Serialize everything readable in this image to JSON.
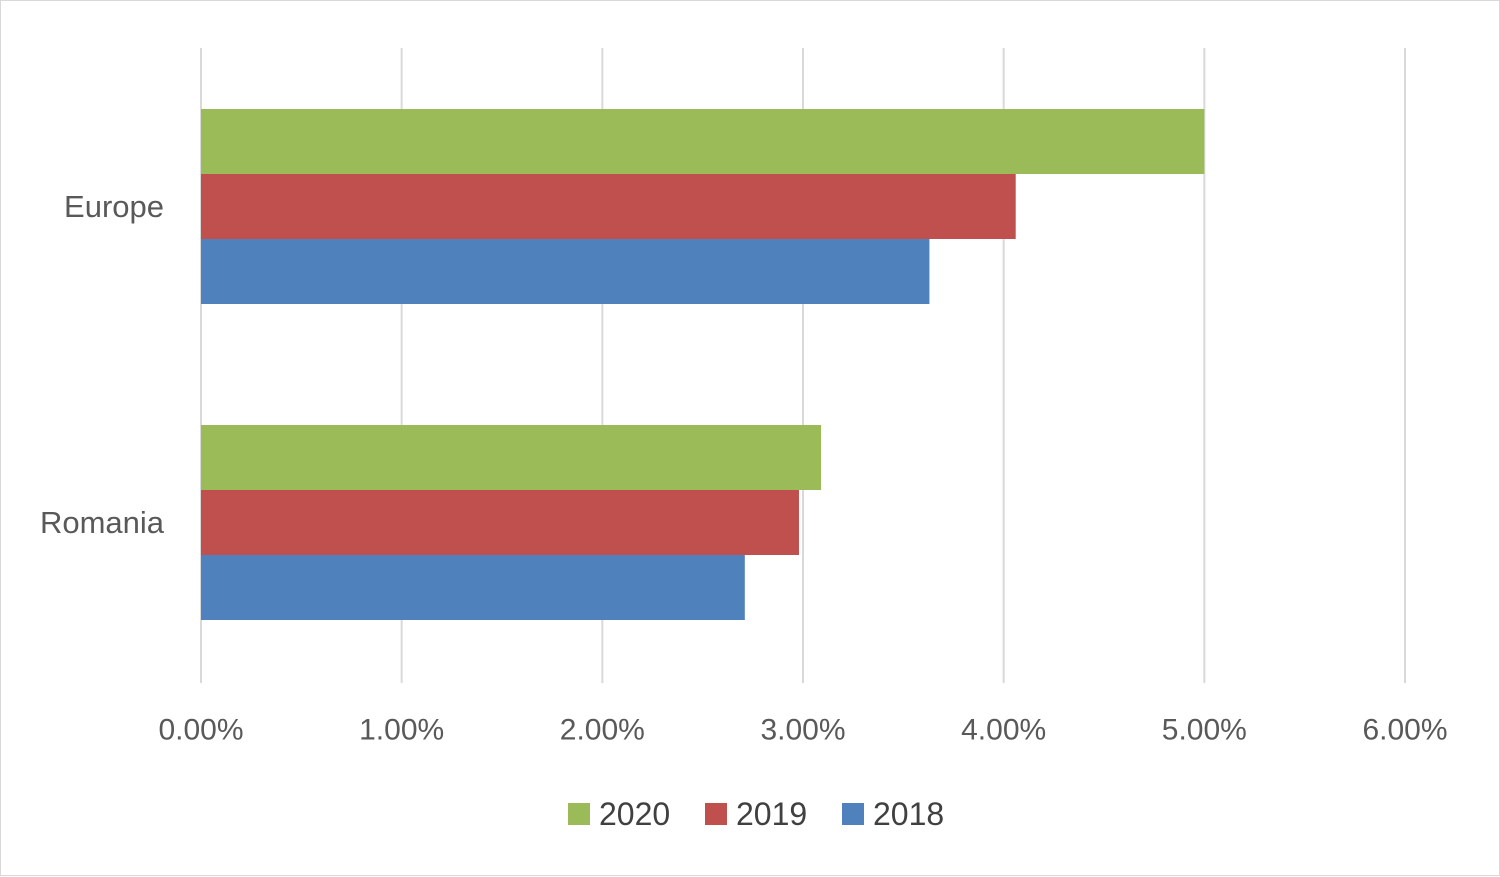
{
  "chart_data": {
    "type": "bar",
    "orientation": "horizontal",
    "title": "",
    "xlabel": "",
    "ylabel": "",
    "categories": [
      "Europe",
      "Romania"
    ],
    "series": [
      {
        "name": "2020",
        "color": "#9bbb59",
        "values": [
          5.0,
          3.09
        ]
      },
      {
        "name": "2019",
        "color": "#c0504d",
        "values": [
          4.06,
          2.98
        ]
      },
      {
        "name": "2018",
        "color": "#4f81bd",
        "values": [
          3.63,
          2.71
        ]
      }
    ],
    "xlim": [
      0,
      6
    ],
    "x_ticks": [
      0,
      1,
      2,
      3,
      4,
      5,
      6
    ],
    "x_tick_labels": [
      "0.00%",
      "1.00%",
      "2.00%",
      "3.00%",
      "4.00%",
      "5.00%",
      "6.00%"
    ],
    "grid": "vertical",
    "legend_position": "bottom",
    "legend_order": [
      "2020",
      "2019",
      "2018"
    ]
  }
}
